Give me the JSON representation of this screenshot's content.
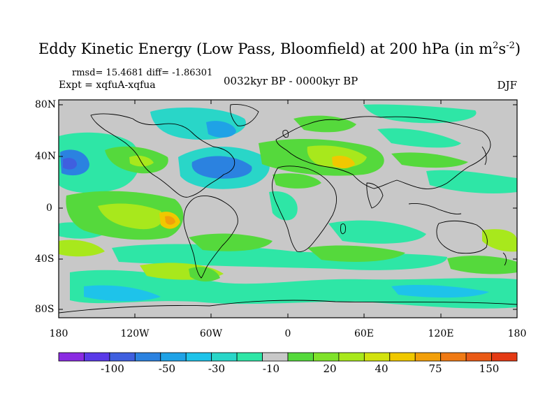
{
  "title": {
    "main": "Eddy Kinetic Energy (Low Pass, Bloomfield) at 200 hPa (in m",
    "sup1": "2",
    "mid": "s",
    "sup2": "-2",
    "end": ")"
  },
  "stats": "rmsd= 15.4681 diff= -1.86301",
  "expt": "Expt = xqfuA-xqfua",
  "period": "0032kyr BP - 0000kyr BP",
  "season": "DJF",
  "lat_labels": [
    "80N",
    "40N",
    "0",
    "40S",
    "80S"
  ],
  "lon_labels": [
    "180",
    "120W",
    "60W",
    "0",
    "60E",
    "120E",
    "180"
  ],
  "colorbar": {
    "labels": [
      "-100",
      "-50",
      "-30",
      "-10",
      "20",
      "40",
      "75",
      "150"
    ],
    "colors": [
      "#8a2be2",
      "#5a3ae8",
      "#3f5fdf",
      "#2b82e0",
      "#1fa2e6",
      "#1ec3ea",
      "#29d6c8",
      "#2ee6a6",
      "#c8c8c8",
      "#55d93c",
      "#7fe22a",
      "#a8e81c",
      "#d2e20e",
      "#f0c800",
      "#f29f0a",
      "#f07a14",
      "#ea5a16",
      "#e43a14"
    ]
  },
  "colors": {
    "land": "#c8c8c8",
    "coast": "#000000",
    "frame": "#000000"
  }
}
